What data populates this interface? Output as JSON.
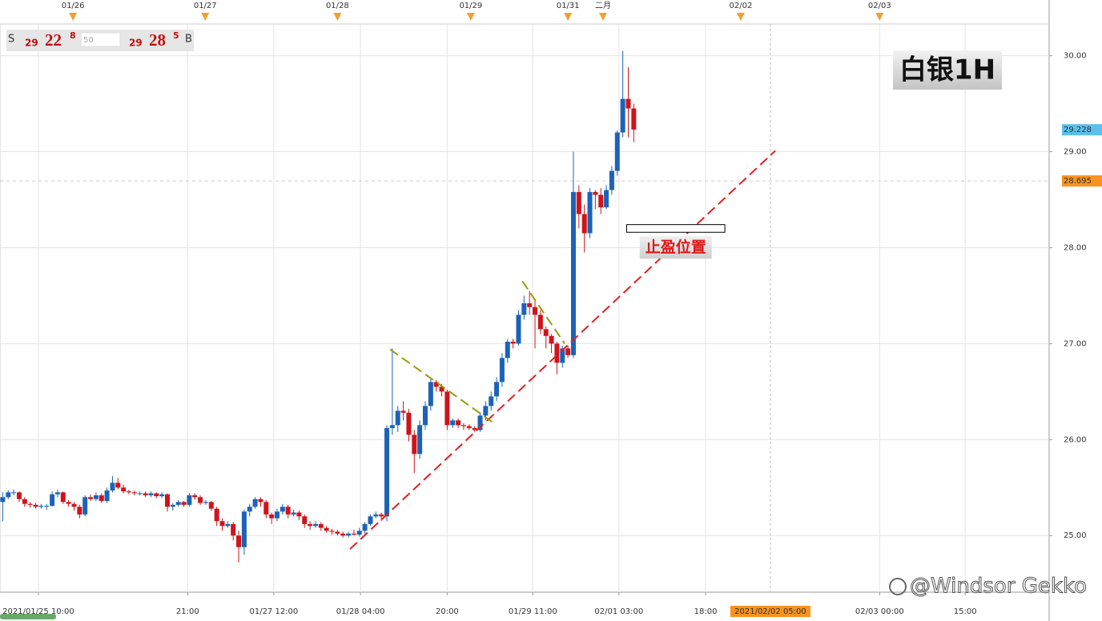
{
  "chart_data": {
    "type": "candlestick",
    "title": "白银1H",
    "quote_box": {
      "sell_label": "S",
      "sell_big": "29",
      "sell_mid": "22",
      "sell_sup": "8",
      "lot": "50",
      "buy_big": "29",
      "buy_mid": "28",
      "buy_sup": "5",
      "buy_label": "B"
    },
    "up_color": "#1c63b8",
    "down_color": "#d0141a",
    "grid": true,
    "xlim": [
      -0.5,
      190.7
    ],
    "ylim": [
      24.41,
      30.33
    ],
    "yticks": [
      {
        "value": 25,
        "label": "25.00"
      },
      {
        "value": 26,
        "label": "26.00"
      },
      {
        "value": 27,
        "label": "27.00"
      },
      {
        "value": 28,
        "label": "28.00"
      },
      {
        "value": 29,
        "label": "29.00"
      },
      {
        "value": 30,
        "label": "30.00"
      }
    ],
    "xticks": [
      {
        "value": 6.5,
        "label": "2021/01/25 10:00"
      },
      {
        "value": 33.7,
        "label": "21:00"
      },
      {
        "value": 49.4,
        "label": "01/27 12:00"
      },
      {
        "value": 65.2,
        "label": "01/28 04:00"
      },
      {
        "value": 81.0,
        "label": "20:00"
      },
      {
        "value": 96.6,
        "label": "01/29 11:00"
      },
      {
        "value": 112.3,
        "label": "02/01 03:00"
      },
      {
        "value": 128.1,
        "label": "18:00"
      },
      {
        "value": 159.8,
        "label": "02/03 00:00"
      },
      {
        "value": 175.4,
        "label": "15:00"
      }
    ],
    "top_ticks": [
      {
        "value": 12.8,
        "label": "01/26"
      },
      {
        "value": 36.9,
        "label": "01/27"
      },
      {
        "value": 61.0,
        "label": "01/28"
      },
      {
        "value": 85.3,
        "label": "01/29"
      },
      {
        "value": 103.0,
        "label": "01/31"
      },
      {
        "value": 109.4,
        "label": "二月"
      },
      {
        "value": 134.5,
        "label": "02/02"
      },
      {
        "value": 159.8,
        "label": "02/03"
      }
    ],
    "crosshair": {
      "value": 139.9,
      "label": "2021/02/02 05:00",
      "color": "#f7931e"
    },
    "price_markers": [
      {
        "value": 29.228,
        "color": "#5bc0eb",
        "dashed_line": false
      },
      {
        "value": 28.695,
        "color": "#f7931e",
        "dashed_line": true
      }
    ],
    "trendlines": [
      {
        "x": [
          63.3,
          140.8
        ],
        "y": [
          24.86,
          29.01
        ],
        "color": "#e02020"
      },
      {
        "x": [
          70.6,
          89.3
        ],
        "y": [
          26.94,
          26.18
        ],
        "color": "#9a9a10"
      },
      {
        "x": [
          94.7,
          102.4
        ],
        "y": [
          27.65,
          27.0
        ],
        "color": "#9a9a10"
      }
    ],
    "take_profit": {
      "label": "止盈位置",
      "x": [
        113.7,
        131.6
      ],
      "y": [
        28.24,
        28.16
      ]
    },
    "watermark": "@Windsor Gekko",
    "candles": {
      "x": [
        0,
        1,
        2,
        3,
        4,
        5,
        6,
        7,
        8,
        9,
        10,
        11,
        12,
        13,
        14,
        15,
        16,
        17,
        18,
        19,
        20,
        21,
        22,
        23,
        24,
        25,
        26,
        27,
        28,
        29,
        30,
        31,
        32,
        33,
        34,
        35,
        36,
        37,
        38,
        39,
        40,
        41,
        42,
        43,
        44,
        45,
        46,
        47,
        48,
        49,
        50,
        51,
        52,
        53,
        54,
        55,
        56,
        57,
        58,
        59,
        60,
        61,
        62,
        63,
        64,
        65,
        66,
        67,
        68,
        69,
        70,
        71,
        72,
        73,
        74,
        75,
        76,
        77,
        78,
        79,
        80,
        81,
        82,
        83,
        84,
        85,
        86,
        87,
        88,
        89,
        90,
        91,
        92,
        93,
        94,
        95,
        96,
        97,
        98,
        99,
        100,
        101,
        102,
        103,
        104,
        105,
        106,
        107,
        108,
        109,
        110,
        111,
        112,
        113,
        114,
        115
      ],
      "ohlc": [
        [
          25.35,
          25.45,
          25.15,
          25.4
        ],
        [
          25.4,
          25.47,
          25.38,
          25.45
        ],
        [
          25.45,
          25.48,
          25.42,
          25.45
        ],
        [
          25.45,
          25.46,
          25.35,
          25.38
        ],
        [
          25.38,
          25.4,
          25.3,
          25.33
        ],
        [
          25.33,
          25.35,
          25.29,
          25.32
        ],
        [
          25.32,
          25.34,
          25.28,
          25.3
        ],
        [
          25.3,
          25.33,
          25.28,
          25.31
        ],
        [
          25.31,
          25.33,
          25.27,
          25.31
        ],
        [
          25.31,
          25.46,
          25.3,
          25.43
        ],
        [
          25.43,
          25.48,
          25.4,
          25.45
        ],
        [
          25.45,
          25.46,
          25.33,
          25.35
        ],
        [
          25.35,
          25.37,
          25.3,
          25.33
        ],
        [
          25.33,
          25.35,
          25.26,
          25.3
        ],
        [
          25.3,
          25.32,
          25.18,
          25.22
        ],
        [
          25.22,
          25.42,
          25.2,
          25.4
        ],
        [
          25.4,
          25.43,
          25.36,
          25.38
        ],
        [
          25.38,
          25.45,
          25.36,
          25.42
        ],
        [
          25.42,
          25.44,
          25.34,
          25.36
        ],
        [
          25.36,
          25.5,
          25.34,
          25.47
        ],
        [
          25.47,
          25.62,
          25.45,
          25.55
        ],
        [
          25.55,
          25.6,
          25.48,
          25.5
        ],
        [
          25.5,
          25.53,
          25.44,
          25.46
        ],
        [
          25.46,
          25.48,
          25.43,
          25.45
        ],
        [
          25.45,
          25.47,
          25.42,
          25.44
        ],
        [
          25.44,
          25.46,
          25.42,
          25.44
        ],
        [
          25.44,
          25.46,
          25.4,
          25.42
        ],
        [
          25.42,
          25.46,
          25.4,
          25.44
        ],
        [
          25.44,
          25.45,
          25.39,
          25.41
        ],
        [
          25.41,
          25.45,
          25.39,
          25.43
        ],
        [
          25.43,
          25.44,
          25.25,
          25.3
        ],
        [
          25.3,
          25.34,
          25.26,
          25.32
        ],
        [
          25.32,
          25.37,
          25.3,
          25.35
        ],
        [
          25.35,
          25.36,
          25.3,
          25.32
        ],
        [
          25.32,
          25.44,
          25.3,
          25.42
        ],
        [
          25.42,
          25.44,
          25.37,
          25.4
        ],
        [
          25.4,
          25.42,
          25.32,
          25.34
        ],
        [
          25.34,
          25.37,
          25.32,
          25.35
        ],
        [
          25.35,
          25.36,
          25.26,
          25.28
        ],
        [
          25.28,
          25.3,
          25.1,
          25.15
        ],
        [
          25.15,
          25.18,
          25.05,
          25.1
        ],
        [
          25.1,
          25.15,
          25.08,
          25.12
        ],
        [
          25.12,
          25.14,
          24.95,
          25.0
        ],
        [
          25.0,
          25.05,
          24.72,
          24.88
        ],
        [
          24.88,
          25.27,
          24.8,
          25.25
        ],
        [
          25.25,
          25.33,
          25.2,
          25.3
        ],
        [
          25.3,
          25.4,
          25.28,
          25.38
        ],
        [
          25.38,
          25.4,
          25.3,
          25.35
        ],
        [
          25.35,
          25.37,
          25.18,
          25.22
        ],
        [
          25.22,
          25.24,
          25.12,
          25.18
        ],
        [
          25.18,
          25.28,
          25.15,
          25.25
        ],
        [
          25.25,
          25.33,
          25.22,
          25.3
        ],
        [
          25.3,
          25.32,
          25.18,
          25.22
        ],
        [
          25.22,
          25.27,
          25.2,
          25.24
        ],
        [
          25.24,
          25.26,
          25.16,
          25.2
        ],
        [
          25.2,
          25.22,
          25.08,
          25.12
        ],
        [
          25.12,
          25.15,
          25.06,
          25.1
        ],
        [
          25.1,
          25.15,
          25.08,
          25.12
        ],
        [
          25.12,
          25.14,
          25.05,
          25.08
        ],
        [
          25.08,
          25.1,
          25.03,
          25.05
        ],
        [
          25.05,
          25.07,
          25.01,
          25.04
        ],
        [
          25.04,
          25.06,
          25.0,
          25.02
        ],
        [
          25.02,
          25.04,
          24.98,
          25.0
        ],
        [
          25.0,
          25.04,
          24.98,
          25.02
        ],
        [
          25.02,
          25.06,
          25.0,
          25.01
        ],
        [
          25.01,
          25.08,
          24.99,
          25.05
        ],
        [
          25.05,
          25.14,
          25.02,
          25.12
        ],
        [
          25.12,
          25.22,
          25.1,
          25.2
        ],
        [
          25.2,
          25.25,
          25.18,
          25.22
        ],
        [
          25.22,
          25.24,
          25.15,
          25.2
        ],
        [
          25.2,
          26.15,
          25.15,
          26.12
        ],
        [
          26.12,
          26.95,
          26.05,
          26.15
        ],
        [
          26.15,
          26.35,
          26.08,
          26.3
        ],
        [
          26.3,
          26.4,
          26.2,
          26.28
        ],
        [
          26.28,
          26.32,
          25.98,
          26.05
        ],
        [
          26.05,
          26.1,
          25.65,
          25.85
        ],
        [
          25.85,
          26.2,
          25.8,
          26.15
        ],
        [
          26.15,
          26.4,
          26.1,
          26.35
        ],
        [
          26.35,
          26.65,
          26.3,
          26.6
        ],
        [
          26.6,
          26.62,
          26.5,
          26.55
        ],
        [
          26.55,
          26.58,
          26.45,
          26.5
        ],
        [
          26.5,
          26.52,
          26.1,
          26.15
        ],
        [
          26.15,
          26.22,
          26.12,
          26.2
        ],
        [
          26.2,
          26.22,
          26.12,
          26.15
        ],
        [
          26.15,
          26.17,
          26.1,
          26.14
        ],
        [
          26.14,
          26.16,
          26.1,
          26.12
        ],
        [
          26.12,
          26.14,
          26.08,
          26.1
        ],
        [
          26.1,
          26.28,
          26.08,
          26.25
        ],
        [
          26.25,
          26.4,
          26.2,
          26.35
        ],
        [
          26.35,
          26.5,
          26.3,
          26.45
        ],
        [
          26.45,
          26.65,
          26.4,
          26.6
        ],
        [
          26.6,
          26.9,
          26.55,
          26.85
        ],
        [
          26.85,
          27.05,
          26.8,
          27.02
        ],
        [
          27.02,
          27.05,
          26.95,
          27.0
        ],
        [
          27.0,
          27.35,
          26.98,
          27.3
        ],
        [
          27.3,
          27.5,
          27.25,
          27.42
        ],
        [
          27.42,
          27.55,
          27.3,
          27.38
        ],
        [
          27.38,
          27.45,
          26.95,
          27.3
        ],
        [
          27.3,
          27.35,
          27.1,
          27.15
        ],
        [
          27.15,
          27.18,
          26.95,
          27.08
        ],
        [
          27.08,
          27.1,
          26.9,
          27.0
        ],
        [
          27.0,
          27.02,
          26.68,
          26.8
        ],
        [
          26.8,
          26.98,
          26.75,
          26.95
        ],
        [
          26.95,
          26.98,
          26.85,
          26.88
        ],
        [
          26.88,
          29.0,
          26.85,
          28.58
        ],
        [
          28.58,
          28.65,
          28.2,
          28.35
        ],
        [
          28.35,
          28.45,
          27.95,
          28.15
        ],
        [
          28.15,
          28.62,
          28.1,
          28.58
        ],
        [
          28.58,
          28.6,
          28.4,
          28.55
        ],
        [
          28.55,
          28.62,
          28.35,
          28.42
        ],
        [
          28.42,
          28.65,
          28.4,
          28.6
        ],
        [
          28.6,
          28.85,
          28.55,
          28.8
        ],
        [
          28.8,
          29.22,
          28.75,
          29.2
        ],
        [
          29.2,
          30.05,
          29.15,
          29.55
        ],
        [
          29.55,
          29.88,
          29.15,
          29.45
        ],
        [
          29.45,
          29.5,
          29.1,
          29.23
        ]
      ]
    }
  }
}
